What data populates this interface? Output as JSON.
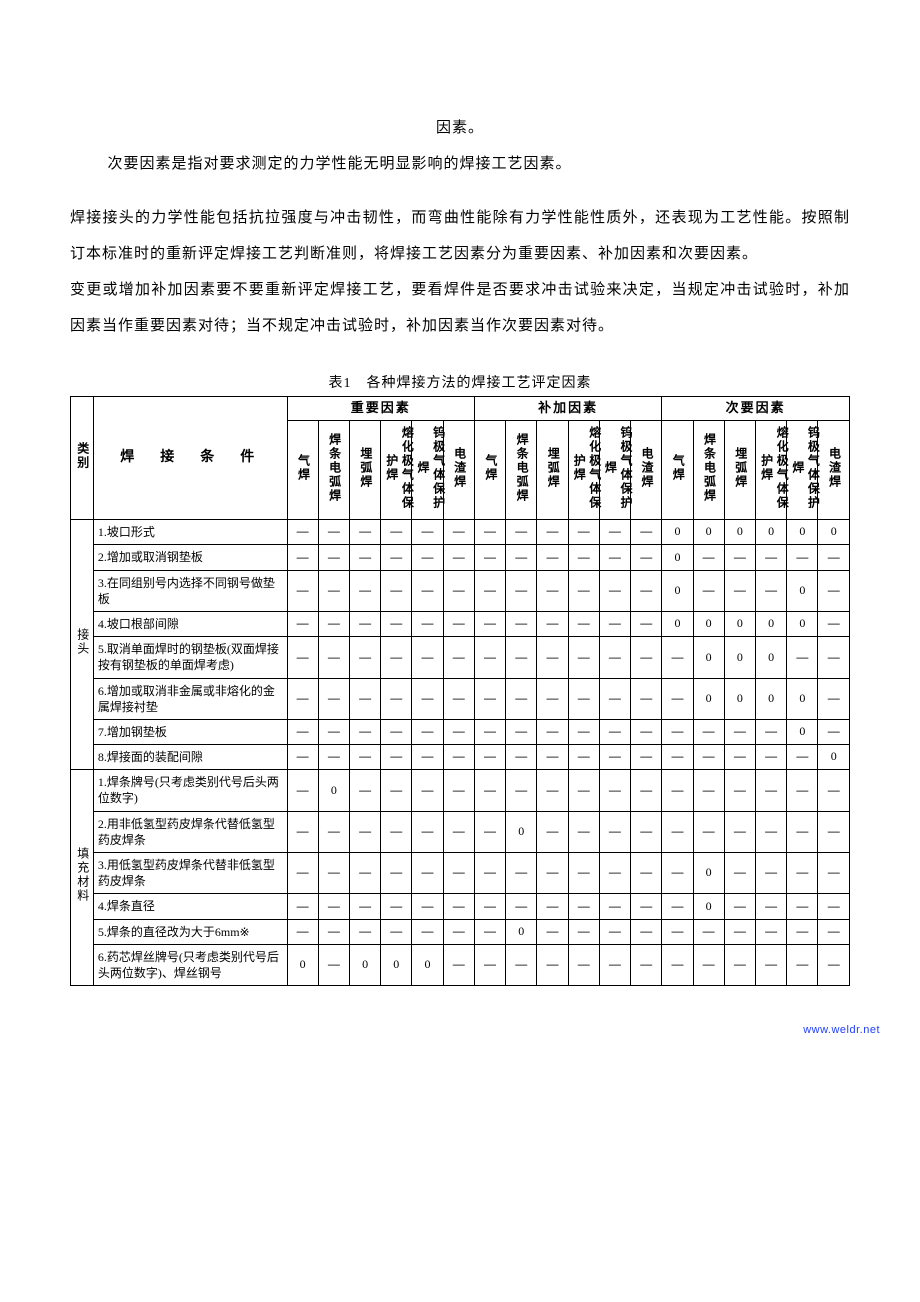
{
  "paragraphs": {
    "p1": "因素。",
    "p2": "次要因素是指对要求测定的力学性能无明显影响的焊接工艺因素。",
    "p3": "焊接接头的力学性能包括抗拉强度与冲击韧性，而弯曲性能除有力学性能性质外，还表现为工艺性能。按照制订本标准时的重新评定焊接工艺判断准则，将焊接工艺因素分为重要因素、补加因素和次要因素。",
    "p4": "变更或增加补加因素要不要重新评定焊接工艺，要看焊件是否要求冲击试验来决定，当规定冲击试验时，补加因素当作重要因素对待；当不规定冲击试验时，补加因素当作次要因素对待。"
  },
  "table": {
    "title": "表1　各种焊接方法的焊接工艺评定因素",
    "header": {
      "category_label": "类别",
      "condition_label": "焊　接　条　件",
      "groups": [
        "重要因素",
        "补加因素",
        "次要因素"
      ],
      "sub_cols": [
        "气焊",
        "焊条电弧焊",
        "埋弧焊",
        "熔化极气体保护焊",
        "钨极气体保护焊",
        "电渣焊"
      ]
    },
    "categories": [
      {
        "label": "接头",
        "rows": [
          0,
          1,
          2,
          3,
          4,
          5,
          6,
          7
        ]
      },
      {
        "label": "填充材料",
        "rows": [
          8,
          9,
          10,
          11,
          12,
          13
        ]
      }
    ],
    "rows": [
      {
        "cond": "1.坡口形式",
        "cells": [
          "—",
          "—",
          "—",
          "—",
          "—",
          "—",
          "—",
          "—",
          "—",
          "—",
          "—",
          "—",
          "0",
          "0",
          "0",
          "0",
          "0",
          "0"
        ]
      },
      {
        "cond": "2.增加或取消钢垫板",
        "cells": [
          "—",
          "—",
          "—",
          "—",
          "—",
          "—",
          "—",
          "—",
          "—",
          "—",
          "—",
          "—",
          "0",
          "—",
          "—",
          "—",
          "—",
          "—"
        ]
      },
      {
        "cond": "3.在同组别号内选择不同钢号做垫板",
        "cells": [
          "—",
          "—",
          "—",
          "—",
          "—",
          "—",
          "—",
          "—",
          "—",
          "—",
          "—",
          "—",
          "0",
          "—",
          "—",
          "—",
          "0",
          "—"
        ]
      },
      {
        "cond": "4.坡口根部间隙",
        "cells": [
          "—",
          "—",
          "—",
          "—",
          "—",
          "—",
          "—",
          "—",
          "—",
          "—",
          "—",
          "—",
          "0",
          "0",
          "0",
          "0",
          "0",
          "—"
        ]
      },
      {
        "cond": "5.取消单面焊时的钢垫板(双面焊接按有钢垫板的单面焊考虑)",
        "cells": [
          "—",
          "—",
          "—",
          "—",
          "—",
          "—",
          "—",
          "—",
          "—",
          "—",
          "—",
          "—",
          "—",
          "0",
          "0",
          "0",
          "—",
          "—"
        ]
      },
      {
        "cond": "6.增加或取消非金属或非熔化的金属焊接衬垫",
        "cells": [
          "—",
          "—",
          "—",
          "—",
          "—",
          "—",
          "—",
          "—",
          "—",
          "—",
          "—",
          "—",
          "—",
          "0",
          "0",
          "0",
          "0",
          "—"
        ]
      },
      {
        "cond": "7.增加钢垫板",
        "cells": [
          "—",
          "—",
          "—",
          "—",
          "—",
          "—",
          "—",
          "—",
          "—",
          "—",
          "—",
          "—",
          "—",
          "—",
          "—",
          "—",
          "0",
          "—"
        ]
      },
      {
        "cond": "8.焊接面的装配间隙",
        "cells": [
          "—",
          "—",
          "—",
          "—",
          "—",
          "—",
          "—",
          "—",
          "—",
          "—",
          "—",
          "—",
          "—",
          "—",
          "—",
          "—",
          "—",
          "0"
        ]
      },
      {
        "cond": "1.焊条牌号(只考虑类别代号后头两位数字)",
        "cells": [
          "—",
          "0",
          "—",
          "—",
          "—",
          "—",
          "—",
          "—",
          "—",
          "—",
          "—",
          "—",
          "—",
          "—",
          "—",
          "—",
          "—",
          "—"
        ]
      },
      {
        "cond": "2.用非低氢型药皮焊条代替低氢型药皮焊条",
        "cells": [
          "—",
          "—",
          "—",
          "—",
          "—",
          "—",
          "—",
          "0",
          "—",
          "—",
          "—",
          "—",
          "—",
          "—",
          "—",
          "—",
          "—",
          "—"
        ]
      },
      {
        "cond": "3.用低氢型药皮焊条代替非低氢型药皮焊条",
        "cells": [
          "—",
          "—",
          "—",
          "—",
          "—",
          "—",
          "—",
          "—",
          "—",
          "—",
          "—",
          "—",
          "—",
          "0",
          "—",
          "—",
          "—",
          "—"
        ]
      },
      {
        "cond": "4.焊条直径",
        "cells": [
          "—",
          "—",
          "—",
          "—",
          "—",
          "—",
          "—",
          "—",
          "—",
          "—",
          "—",
          "—",
          "—",
          "0",
          "—",
          "—",
          "—",
          "—"
        ]
      },
      {
        "cond": "5.焊条的直径改为大于6mm※",
        "cells": [
          "—",
          "—",
          "—",
          "—",
          "—",
          "—",
          "—",
          "0",
          "—",
          "—",
          "—",
          "—",
          "—",
          "—",
          "—",
          "—",
          "—",
          "—"
        ]
      },
      {
        "cond": "6.药芯焊丝牌号(只考虑类别代号后头两位数字)、焊丝钢号",
        "cells": [
          "0",
          "—",
          "0",
          "0",
          "0",
          "—",
          "—",
          "—",
          "—",
          "—",
          "—",
          "—",
          "—",
          "—",
          "—",
          "—",
          "—",
          "—"
        ]
      }
    ]
  },
  "watermark": "www.weldr.net"
}
